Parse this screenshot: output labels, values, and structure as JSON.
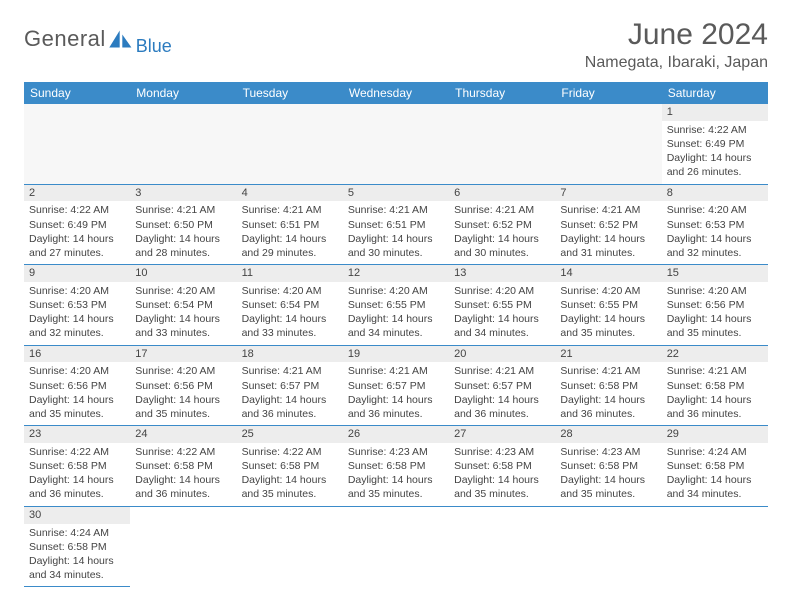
{
  "brand": {
    "main": "General",
    "sub": "Blue",
    "logo_fill": "#2b7bbf"
  },
  "title": "June 2024",
  "location": "Namegata, Ibaraki, Japan",
  "colors": {
    "header_bg": "#3b8bc9",
    "header_text": "#ffffff",
    "row_divider": "#3b8bc9",
    "daynum_bg": "#ededed",
    "text": "#444444",
    "title_text": "#5a5a5a"
  },
  "daysOfWeek": [
    "Sunday",
    "Monday",
    "Tuesday",
    "Wednesday",
    "Thursday",
    "Friday",
    "Saturday"
  ],
  "startWeekday": 6,
  "daysInMonth": 30,
  "cells": {
    "1": {
      "sunrise": "4:22 AM",
      "sunset": "6:49 PM",
      "dl_h": 14,
      "dl_m": 26
    },
    "2": {
      "sunrise": "4:22 AM",
      "sunset": "6:49 PM",
      "dl_h": 14,
      "dl_m": 27
    },
    "3": {
      "sunrise": "4:21 AM",
      "sunset": "6:50 PM",
      "dl_h": 14,
      "dl_m": 28
    },
    "4": {
      "sunrise": "4:21 AM",
      "sunset": "6:51 PM",
      "dl_h": 14,
      "dl_m": 29
    },
    "5": {
      "sunrise": "4:21 AM",
      "sunset": "6:51 PM",
      "dl_h": 14,
      "dl_m": 30
    },
    "6": {
      "sunrise": "4:21 AM",
      "sunset": "6:52 PM",
      "dl_h": 14,
      "dl_m": 30
    },
    "7": {
      "sunrise": "4:21 AM",
      "sunset": "6:52 PM",
      "dl_h": 14,
      "dl_m": 31
    },
    "8": {
      "sunrise": "4:20 AM",
      "sunset": "6:53 PM",
      "dl_h": 14,
      "dl_m": 32
    },
    "9": {
      "sunrise": "4:20 AM",
      "sunset": "6:53 PM",
      "dl_h": 14,
      "dl_m": 32
    },
    "10": {
      "sunrise": "4:20 AM",
      "sunset": "6:54 PM",
      "dl_h": 14,
      "dl_m": 33
    },
    "11": {
      "sunrise": "4:20 AM",
      "sunset": "6:54 PM",
      "dl_h": 14,
      "dl_m": 33
    },
    "12": {
      "sunrise": "4:20 AM",
      "sunset": "6:55 PM",
      "dl_h": 14,
      "dl_m": 34
    },
    "13": {
      "sunrise": "4:20 AM",
      "sunset": "6:55 PM",
      "dl_h": 14,
      "dl_m": 34
    },
    "14": {
      "sunrise": "4:20 AM",
      "sunset": "6:55 PM",
      "dl_h": 14,
      "dl_m": 35
    },
    "15": {
      "sunrise": "4:20 AM",
      "sunset": "6:56 PM",
      "dl_h": 14,
      "dl_m": 35
    },
    "16": {
      "sunrise": "4:20 AM",
      "sunset": "6:56 PM",
      "dl_h": 14,
      "dl_m": 35
    },
    "17": {
      "sunrise": "4:20 AM",
      "sunset": "6:56 PM",
      "dl_h": 14,
      "dl_m": 35
    },
    "18": {
      "sunrise": "4:21 AM",
      "sunset": "6:57 PM",
      "dl_h": 14,
      "dl_m": 36
    },
    "19": {
      "sunrise": "4:21 AM",
      "sunset": "6:57 PM",
      "dl_h": 14,
      "dl_m": 36
    },
    "20": {
      "sunrise": "4:21 AM",
      "sunset": "6:57 PM",
      "dl_h": 14,
      "dl_m": 36
    },
    "21": {
      "sunrise": "4:21 AM",
      "sunset": "6:58 PM",
      "dl_h": 14,
      "dl_m": 36
    },
    "22": {
      "sunrise": "4:21 AM",
      "sunset": "6:58 PM",
      "dl_h": 14,
      "dl_m": 36
    },
    "23": {
      "sunrise": "4:22 AM",
      "sunset": "6:58 PM",
      "dl_h": 14,
      "dl_m": 36
    },
    "24": {
      "sunrise": "4:22 AM",
      "sunset": "6:58 PM",
      "dl_h": 14,
      "dl_m": 36
    },
    "25": {
      "sunrise": "4:22 AM",
      "sunset": "6:58 PM",
      "dl_h": 14,
      "dl_m": 35
    },
    "26": {
      "sunrise": "4:23 AM",
      "sunset": "6:58 PM",
      "dl_h": 14,
      "dl_m": 35
    },
    "27": {
      "sunrise": "4:23 AM",
      "sunset": "6:58 PM",
      "dl_h": 14,
      "dl_m": 35
    },
    "28": {
      "sunrise": "4:23 AM",
      "sunset": "6:58 PM",
      "dl_h": 14,
      "dl_m": 35
    },
    "29": {
      "sunrise": "4:24 AM",
      "sunset": "6:58 PM",
      "dl_h": 14,
      "dl_m": 34
    },
    "30": {
      "sunrise": "4:24 AM",
      "sunset": "6:58 PM",
      "dl_h": 14,
      "dl_m": 34
    }
  },
  "labels": {
    "sunrise": "Sunrise:",
    "sunset": "Sunset:",
    "daylight_prefix": "Daylight:",
    "hours_word": "hours",
    "and_word": "and",
    "minutes_word": "minutes."
  }
}
